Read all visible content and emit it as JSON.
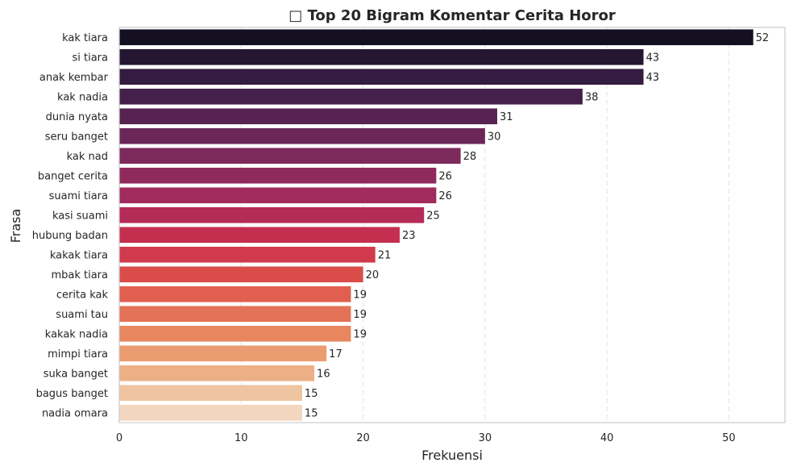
{
  "chart_data": {
    "type": "bar",
    "orientation": "horizontal",
    "title": "□ Top 20 Bigram Komentar Cerita Horor",
    "xlabel": "Frekuensi",
    "ylabel": "Frasa",
    "xlim": [
      0,
      54.6
    ],
    "xticks": [
      "0",
      "10",
      "20",
      "30",
      "40",
      "50"
    ],
    "grid": "x-dashed",
    "categories": [
      "kak tiara",
      "si tiara",
      "anak kembar",
      "kak nadia",
      "dunia nyata",
      "seru banget",
      "kak nad",
      "banget cerita",
      "suami tiara",
      "kasi suami",
      "hubung badan",
      "kakak tiara",
      "mbak tiara",
      "cerita kak",
      "suami tau",
      "kakak nadia",
      "mimpi tiara",
      "suka banget",
      "bagus banget",
      "nadia omara"
    ],
    "values": [
      52,
      43,
      43,
      38,
      31,
      30,
      28,
      26,
      26,
      25,
      23,
      21,
      20,
      19,
      19,
      19,
      17,
      16,
      15,
      15
    ],
    "value_labels": [
      "52",
      "43",
      "43",
      "38",
      "31",
      "30",
      "28",
      "26",
      "26",
      "25",
      "23",
      "21",
      "20",
      "19",
      "19",
      "19",
      "17",
      "16",
      "15",
      "15"
    ],
    "colors": [
      "#140f21",
      "#241531",
      "#341b40",
      "#45204b",
      "#572452",
      "#6a2758",
      "#7c295c",
      "#8f2a5d",
      "#a12b5c",
      "#b42b57",
      "#c42f50",
      "#d13a4c",
      "#da4c4a",
      "#e05f4e",
      "#e47256",
      "#e8875f",
      "#eb9c70",
      "#edb086",
      "#efc4a0",
      "#f2d6bf"
    ]
  }
}
